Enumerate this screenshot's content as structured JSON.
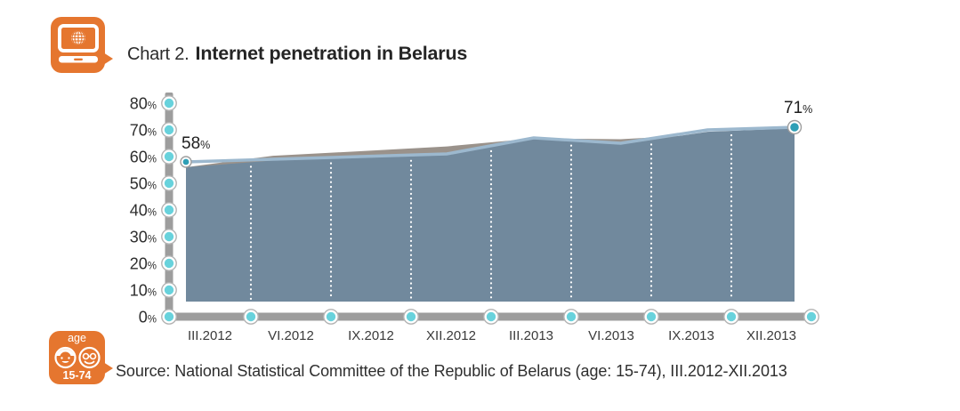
{
  "header": {
    "chart_label": "Chart 2.",
    "title": "Internet penetration in Belarus"
  },
  "badges": {
    "chart_bubble": {
      "icon": "computer-globe-icon"
    },
    "age_bubble": {
      "top_label": "age",
      "bottom_label": "15-74",
      "icon": "two-faces-icon"
    }
  },
  "footer": {
    "source": "Source: National Statistical Committee of the Republic of Belarus (age: 15-74), III.2012-XII.2013"
  },
  "colors": {
    "accent_orange": "#E5762F",
    "axis_gray": "#9D9D9D",
    "tick_dot_teal": "#68D2DC",
    "tick_ring": "#B3B3B3",
    "point_dot_teal": "#2E9FB6",
    "area_main": "#71899D",
    "line_light": "#9CB8CE",
    "area_secondary": "#9A928B",
    "gridline_white": "#FFFFFF",
    "text_dark": "#2B2B2B"
  },
  "chart_data": {
    "type": "area",
    "title": "Internet penetration in Belarus",
    "categories": [
      "III.2012",
      "VI.2012",
      "IX.2012",
      "XII.2012",
      "III.2013",
      "VI.2013",
      "IX.2013",
      "XII.2013"
    ],
    "series": [
      {
        "name": "internet-penetration-line",
        "style": "line",
        "color": "#9CB8CE",
        "values": [
          58,
          59,
          60,
          61,
          67,
          65,
          70,
          71
        ]
      },
      {
        "name": "internet-penetration-area",
        "style": "area",
        "color": "#71899D",
        "values": [
          56,
          58.5,
          59.5,
          60.5,
          66.8,
          64.5,
          69.3,
          70.6
        ]
      },
      {
        "name": "secondary-area",
        "style": "area",
        "color": "#9A928B",
        "values": [
          56,
          60.3,
          62,
          63.8,
          66.8,
          66.5,
          68.3,
          70.4
        ]
      }
    ],
    "xlabel": "",
    "ylabel": "",
    "ylim": [
      0,
      80
    ],
    "yticks": [
      0,
      10,
      20,
      30,
      40,
      50,
      60,
      70,
      80
    ],
    "ytick_suffix": "%",
    "grid": "vertical-dotted-white",
    "legend": "none",
    "annotations": [
      {
        "label": "58",
        "suffix": "%",
        "category": "III.2012",
        "value": 58,
        "position": "start"
      },
      {
        "label": "71",
        "suffix": "%",
        "category": "XII.2013",
        "value": 71,
        "position": "end"
      }
    ]
  }
}
